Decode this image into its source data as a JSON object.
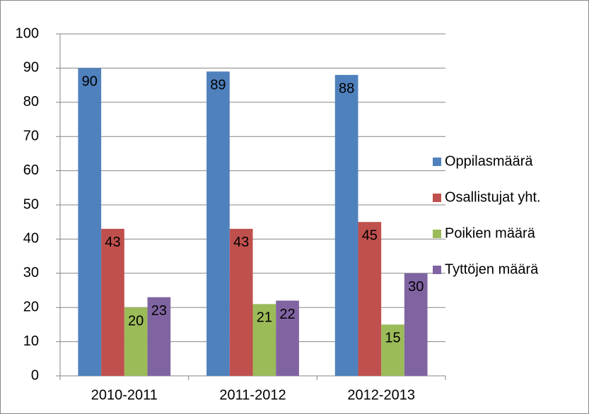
{
  "chart_data": {
    "type": "bar",
    "categories": [
      "2010-2011",
      "2011-2012",
      "2012-2013"
    ],
    "series": [
      {
        "name": "Oppilasmäärä",
        "color": "#4f81bd",
        "values": [
          90,
          89,
          88
        ]
      },
      {
        "name": "Osallistujat yht.",
        "color": "#c0504d",
        "values": [
          43,
          43,
          45
        ]
      },
      {
        "name": "Poikien määrä",
        "color": "#9bbb59",
        "values": [
          20,
          21,
          15
        ]
      },
      {
        "name": "Tyttöjen määrä",
        "color": "#8064a2",
        "values": [
          23,
          22,
          30
        ]
      }
    ],
    "ylim": [
      0,
      100
    ],
    "yticks": [
      0,
      10,
      20,
      30,
      40,
      50,
      60,
      70,
      80,
      90,
      100
    ],
    "grid": true,
    "legend": "right",
    "data_labels": true
  }
}
